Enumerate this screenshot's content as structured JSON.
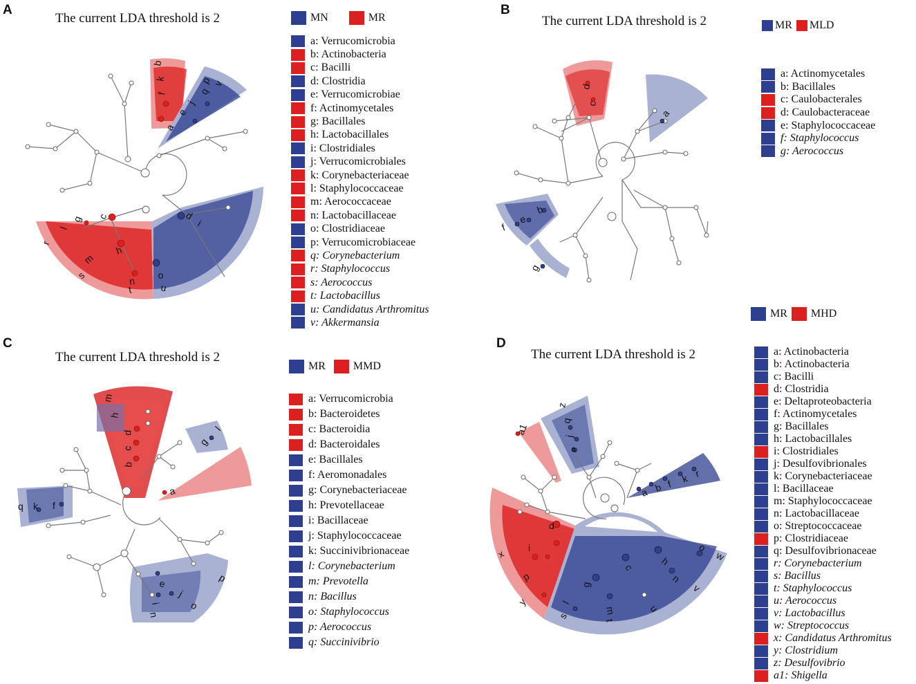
{
  "colors": {
    "blue": "#2e3f8f",
    "red": "#dc1f1f",
    "light_blue": "#aab2d3",
    "light_red": "#ef9a9a"
  },
  "panels": [
    {
      "label": "A",
      "title": "The current LDA threshold is 2",
      "groups": [
        {
          "name": "MN",
          "color": "blue"
        },
        {
          "name": "MR",
          "color": "red"
        }
      ],
      "legend": [
        {
          "text": "a: Verrucomicrobia",
          "color": "blue",
          "italic": false
        },
        {
          "text": "b: Actinobacteria",
          "color": "red",
          "italic": false
        },
        {
          "text": "c: Bacilli",
          "color": "red",
          "italic": false
        },
        {
          "text": "d: Clostridia",
          "color": "blue",
          "italic": false
        },
        {
          "text": "e: Verrucomicrobiae",
          "color": "blue",
          "italic": false
        },
        {
          "text": "f: Actinomycetales",
          "color": "red",
          "italic": false
        },
        {
          "text": "g: Bacillales",
          "color": "red",
          "italic": false
        },
        {
          "text": "h: Lactobacillales",
          "color": "red",
          "italic": false
        },
        {
          "text": "i: Clostridiales",
          "color": "blue",
          "italic": false
        },
        {
          "text": "j: Verrucomicrobiales",
          "color": "blue",
          "italic": false
        },
        {
          "text": "k: Corynebacteriaceae",
          "color": "red",
          "italic": false
        },
        {
          "text": "l: Staphylococcaceae",
          "color": "red",
          "italic": false
        },
        {
          "text": "m: Aerococcaceae",
          "color": "red",
          "italic": false
        },
        {
          "text": "n: Lactobacillaceae",
          "color": "red",
          "italic": false
        },
        {
          "text": "o: Clostridiaceae",
          "color": "blue",
          "italic": false
        },
        {
          "text": "p: Verrucomicrobiaceae",
          "color": "blue",
          "italic": false
        },
        {
          "text": "q: Corynebacterium",
          "color": "red",
          "italic": true
        },
        {
          "text": "r: Staphylococcus",
          "color": "red",
          "italic": true
        },
        {
          "text": "s: Aerococcus",
          "color": "red",
          "italic": true
        },
        {
          "text": "t: Lactobacillus",
          "color": "red",
          "italic": true
        },
        {
          "text": "u: Candidatus Arthromitus",
          "color": "blue",
          "italic": true
        },
        {
          "text": "v: Akkermansia",
          "color": "blue",
          "italic": true
        }
      ],
      "node_letters": [
        "b",
        "k",
        "f",
        "q",
        "p",
        "v",
        "j",
        "e",
        "a",
        "r",
        "l",
        "g",
        "c",
        "m",
        "h",
        "s",
        "n",
        "t",
        "d",
        "i",
        "o",
        "u"
      ]
    },
    {
      "label": "B",
      "title": "The current LDA threshold is 2",
      "groups": [
        {
          "name": "MR",
          "color": "blue"
        },
        {
          "name": "MLD",
          "color": "red"
        }
      ],
      "legend": [
        {
          "text": "a: Actinomycetales",
          "color": "blue",
          "italic": false
        },
        {
          "text": "b: Bacillales",
          "color": "blue",
          "italic": false
        },
        {
          "text": "c: Caulobacterales",
          "color": "red",
          "italic": false
        },
        {
          "text": "d: Caulobacteraceae",
          "color": "red",
          "italic": false
        },
        {
          "text": "e: Staphylococcaceae",
          "color": "blue",
          "italic": false
        },
        {
          "text": "f: Staphylococcus",
          "color": "blue",
          "italic": true
        },
        {
          "text": "g: Aerococcus",
          "color": "blue",
          "italic": true
        }
      ],
      "node_letters": [
        "d",
        "c",
        "a",
        "b",
        "e",
        "f",
        "g"
      ]
    },
    {
      "label": "C",
      "title": "The current LDA threshold is 2",
      "groups": [
        {
          "name": "MR",
          "color": "blue"
        },
        {
          "name": "MMD",
          "color": "red"
        }
      ],
      "legend": [
        {
          "text": "a: Verrucomicrobia",
          "color": "red",
          "italic": false
        },
        {
          "text": "b: Bacteroidetes",
          "color": "red",
          "italic": false
        },
        {
          "text": "c: Bacteroidia",
          "color": "red",
          "italic": false
        },
        {
          "text": "d: Bacteroidales",
          "color": "red",
          "italic": false
        },
        {
          "text": "e: Bacillales",
          "color": "blue",
          "italic": false
        },
        {
          "text": "f: Aeromonadales",
          "color": "blue",
          "italic": false
        },
        {
          "text": "g: Corynebacteriaceae",
          "color": "blue",
          "italic": false
        },
        {
          "text": "h: Prevotellaceae",
          "color": "blue",
          "italic": false
        },
        {
          "text": "i: Bacillaceae",
          "color": "blue",
          "italic": false
        },
        {
          "text": "j: Staphylococcaceae",
          "color": "blue",
          "italic": false
        },
        {
          "text": "k: Succinivibrionaceae",
          "color": "blue",
          "italic": false
        },
        {
          "text": "l: Corynebacterium",
          "color": "blue",
          "italic": true
        },
        {
          "text": "m: Prevotella",
          "color": "blue",
          "italic": true
        },
        {
          "text": "n: Bacillus",
          "color": "blue",
          "italic": true
        },
        {
          "text": "o: Staphylococcus",
          "color": "blue",
          "italic": true
        },
        {
          "text": "p: Aerococcus",
          "color": "blue",
          "italic": true
        },
        {
          "text": "q: Succinivibrio",
          "color": "blue",
          "italic": true
        }
      ],
      "node_letters": [
        "m",
        "h",
        "d",
        "c",
        "b",
        "g",
        "l",
        "a",
        "q",
        "k",
        "f",
        "e",
        "j",
        "i",
        "n",
        "o",
        "p"
      ]
    },
    {
      "label": "D",
      "title": "The current LDA threshold is 2",
      "groups": [
        {
          "name": "MR",
          "color": "blue"
        },
        {
          "name": "MHD",
          "color": "red"
        }
      ],
      "legend": [
        {
          "text": "a: Actinobacteria",
          "color": "blue",
          "italic": false
        },
        {
          "text": "b: Actinobacteria",
          "color": "blue",
          "italic": false
        },
        {
          "text": "c: Bacilli",
          "color": "blue",
          "italic": false
        },
        {
          "text": "d: Clostridia",
          "color": "red",
          "italic": false
        },
        {
          "text": "e: Deltaproteobacteria",
          "color": "blue",
          "italic": false
        },
        {
          "text": "f: Actinomycetales",
          "color": "blue",
          "italic": false
        },
        {
          "text": "g: Bacillales",
          "color": "blue",
          "italic": false
        },
        {
          "text": "h: Lactobacillales",
          "color": "blue",
          "italic": false
        },
        {
          "text": "i: Clostridiales",
          "color": "red",
          "italic": false
        },
        {
          "text": "j: Desulfovibrionales",
          "color": "blue",
          "italic": false
        },
        {
          "text": "k: Corynebacteriaceae",
          "color": "blue",
          "italic": false
        },
        {
          "text": "l: Bacillaceae",
          "color": "blue",
          "italic": false
        },
        {
          "text": "m: Staphylococcaceae",
          "color": "blue",
          "italic": false
        },
        {
          "text": "n: Lactobacillaceae",
          "color": "blue",
          "italic": false
        },
        {
          "text": "o: Streptococcaceae",
          "color": "blue",
          "italic": false
        },
        {
          "text": "p: Clostridiaceae",
          "color": "red",
          "italic": false
        },
        {
          "text": "q: Desulfovibrionaceae",
          "color": "blue",
          "italic": false
        },
        {
          "text": "r: Corynebacterium",
          "color": "blue",
          "italic": true
        },
        {
          "text": "s: Bacillus",
          "color": "blue",
          "italic": true
        },
        {
          "text": "t: Staphylococcus",
          "color": "blue",
          "italic": true
        },
        {
          "text": "u: Aerococcus",
          "color": "blue",
          "italic": true
        },
        {
          "text": "v: Lactobacillus",
          "color": "blue",
          "italic": true
        },
        {
          "text": "w: Streptococcus",
          "color": "blue",
          "italic": true
        },
        {
          "text": "x: Candidatus Arthromitus",
          "color": "red",
          "italic": true
        },
        {
          "text": "y: Clostridium",
          "color": "blue",
          "italic": true
        },
        {
          "text": "z: Desulfovibrio",
          "color": "blue",
          "italic": true
        },
        {
          "text": "a1: Shigella",
          "color": "red",
          "italic": true
        }
      ],
      "node_letters": [
        "a1",
        "z",
        "q",
        "j",
        "e",
        "a",
        "b",
        "f",
        "k",
        "r",
        "x",
        "i",
        "d",
        "p",
        "y",
        "c",
        "o",
        "w",
        "h",
        "n",
        "v",
        "g",
        "m",
        "t",
        "l",
        "s",
        "u"
      ]
    }
  ]
}
